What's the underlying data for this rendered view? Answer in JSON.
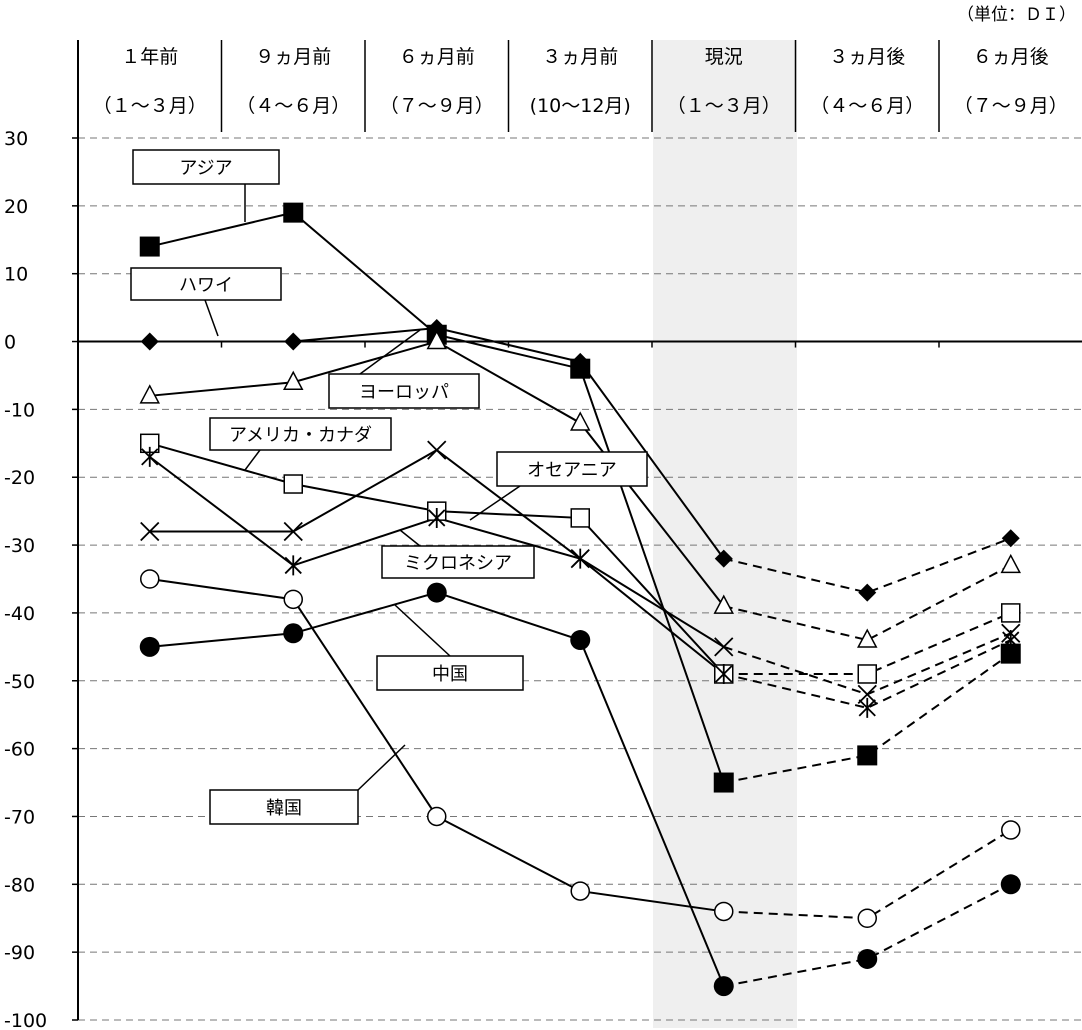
{
  "chart_data": {
    "type": "line",
    "unit_note": "（単位：ＤＩ）",
    "ylim": [
      -100,
      30
    ],
    "y_ticks": [
      30,
      20,
      10,
      0,
      -10,
      -20,
      -30,
      -40,
      -50,
      -60,
      -70,
      -80,
      -90,
      -100
    ],
    "categories": [
      {
        "period": "１年前",
        "months": "（１～３月）"
      },
      {
        "period": "９ヵ月前",
        "months": "（４～６月）"
      },
      {
        "period": "６ヵ月前",
        "months": "（７～９月）"
      },
      {
        "period": "３ヵ月前",
        "months": "(10～12月)"
      },
      {
        "period": "現況",
        "months": "（１～３月）"
      },
      {
        "period": "３ヵ月後",
        "months": "（４～６月）"
      },
      {
        "period": "６ヵ月後",
        "months": "（７～９月）"
      }
    ],
    "highlight_category": "現況",
    "grid": "dashed horizontal",
    "actual_solid_until": "現況",
    "forecast_dashed_after": "現況",
    "series": [
      {
        "name": "アジア",
        "marker": "filled-square",
        "values": [
          14,
          19,
          1,
          -4,
          -65,
          -61,
          -46
        ]
      },
      {
        "name": "ハワイ",
        "marker": "filled-diamond",
        "values": [
          0,
          0,
          2,
          -3,
          -32,
          -37,
          -29
        ]
      },
      {
        "name": "ヨーロッパ",
        "marker": "open-triangle",
        "values": [
          -8,
          -6,
          0,
          -12,
          -39,
          -44,
          -33
        ]
      },
      {
        "name": "アメリカ・カナダ",
        "marker": "open-square",
        "values": [
          -15,
          -21,
          -25,
          -26,
          -49,
          -49,
          -40
        ]
      },
      {
        "name": "オセアニア",
        "marker": "cross",
        "values": [
          -28,
          -28,
          -16,
          -32,
          -45,
          -52,
          -43
        ]
      },
      {
        "name": "ミクロネシア",
        "marker": "asterisk",
        "values": [
          -17,
          -33,
          -26,
          -32,
          -49,
          -54,
          -44
        ]
      },
      {
        "name": "中国",
        "marker": "filled-circle",
        "values": [
          -45,
          -43,
          -37,
          -44,
          -95,
          -91,
          -80
        ]
      },
      {
        "name": "韓国",
        "marker": "open-circle",
        "values": [
          -35,
          -38,
          -70,
          -81,
          -84,
          -85,
          -72
        ]
      }
    ]
  }
}
